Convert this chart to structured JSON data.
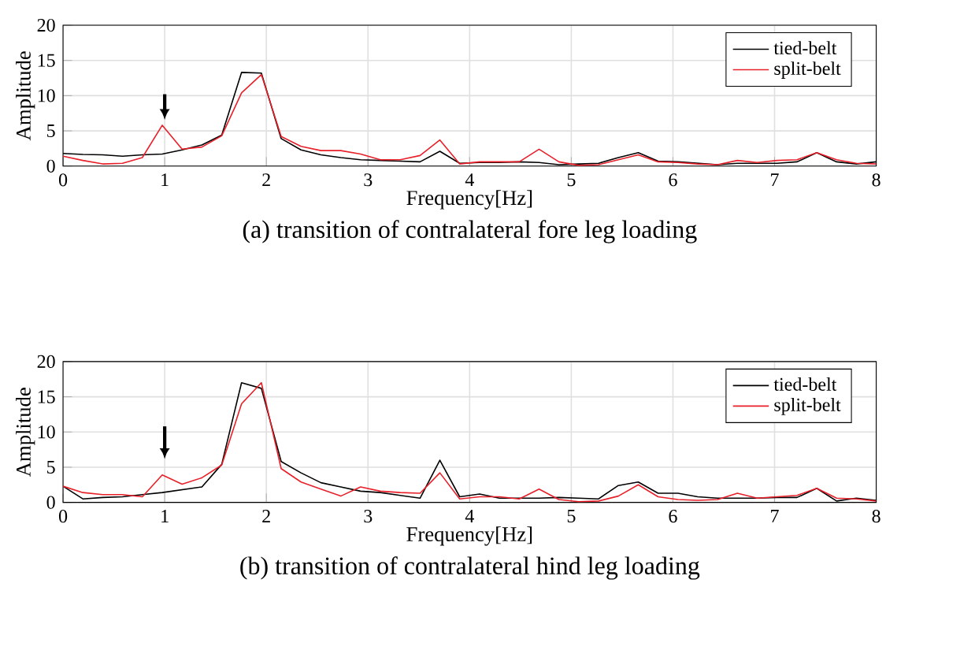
{
  "chart_data": [
    {
      "type": "line",
      "title": "(a) transition of contralateral fore leg loading",
      "xlabel": "Frequency[Hz]",
      "ylabel": "Amplitude",
      "x": [
        0,
        0.195,
        0.39,
        0.585,
        0.78,
        0.976,
        1.171,
        1.366,
        1.561,
        1.756,
        1.951,
        2.146,
        2.341,
        2.537,
        2.732,
        2.927,
        3.122,
        3.317,
        3.512,
        3.707,
        3.902,
        4.098,
        4.293,
        4.488,
        4.683,
        4.878,
        5.073,
        5.268,
        5.463,
        5.659,
        5.854,
        6.049,
        6.244,
        6.439,
        6.634,
        6.829,
        7.024,
        7.22,
        7.415,
        7.61,
        7.805,
        8
      ],
      "series": [
        {
          "name": "tied-belt",
          "color": "#000000",
          "values": [
            1.8,
            1.65,
            1.6,
            1.4,
            1.6,
            1.7,
            2.3,
            3.0,
            4.4,
            13.3,
            13.2,
            3.9,
            2.3,
            1.6,
            1.2,
            0.9,
            0.8,
            0.7,
            0.6,
            2.1,
            0.4,
            0.5,
            0.5,
            0.6,
            0.5,
            0.2,
            0.3,
            0.4,
            1.2,
            1.9,
            0.7,
            0.6,
            0.4,
            0.2,
            0.4,
            0.4,
            0.4,
            0.6,
            1.9,
            0.6,
            0.3,
            0.6
          ]
        },
        {
          "name": "split-belt",
          "color": "#e8202a",
          "values": [
            1.4,
            0.8,
            0.3,
            0.4,
            1.2,
            5.8,
            2.4,
            2.7,
            4.3,
            10.4,
            13.0,
            4.2,
            2.8,
            2.2,
            2.2,
            1.7,
            0.9,
            0.9,
            1.5,
            3.7,
            0.3,
            0.6,
            0.6,
            0.6,
            2.4,
            0.6,
            0.1,
            0.2,
            0.9,
            1.6,
            0.6,
            0.5,
            0.3,
            0.2,
            0.8,
            0.5,
            0.8,
            0.9,
            1.9,
            0.9,
            0.4,
            0.3
          ]
        }
      ],
      "xlim": [
        0,
        8
      ],
      "xticks": [
        0,
        1,
        2,
        3,
        4,
        5,
        6,
        7,
        8
      ],
      "ylim": [
        0,
        20
      ],
      "yticks": [
        0,
        5,
        10,
        15,
        20
      ],
      "grid": true,
      "legend": "top right",
      "line_style": "solid",
      "marker": "none"
    },
    {
      "type": "line",
      "title": "(b) transition of contralateral hind leg loading",
      "xlabel": "Frequency[Hz]",
      "ylabel": "Amplitude",
      "x": [
        0,
        0.195,
        0.39,
        0.585,
        0.78,
        0.976,
        1.171,
        1.366,
        1.561,
        1.756,
        1.951,
        2.146,
        2.341,
        2.537,
        2.732,
        2.927,
        3.122,
        3.317,
        3.512,
        3.707,
        3.902,
        4.098,
        4.293,
        4.488,
        4.683,
        4.878,
        5.073,
        5.268,
        5.463,
        5.659,
        5.854,
        6.049,
        6.244,
        6.439,
        6.634,
        6.829,
        7.024,
        7.22,
        7.415,
        7.61,
        7.805,
        8
      ],
      "series": [
        {
          "name": "tied-belt",
          "color": "#000000",
          "values": [
            2.3,
            0.5,
            0.7,
            0.8,
            1.1,
            1.4,
            1.8,
            2.2,
            5.4,
            17.0,
            16.2,
            5.8,
            4.2,
            2.8,
            2.2,
            1.6,
            1.4,
            1.0,
            0.6,
            6.0,
            0.8,
            1.2,
            0.6,
            0.6,
            0.6,
            0.7,
            0.6,
            0.5,
            2.4,
            2.9,
            1.3,
            1.3,
            0.8,
            0.6,
            0.6,
            0.6,
            0.7,
            0.7,
            2.0,
            0.2,
            0.6,
            0.3
          ]
        },
        {
          "name": "split-belt",
          "color": "#e8202a",
          "values": [
            2.3,
            1.4,
            1.1,
            1.1,
            0.8,
            3.9,
            2.6,
            3.5,
            5.3,
            14.0,
            17.0,
            4.8,
            2.9,
            1.9,
            0.9,
            2.2,
            1.6,
            1.4,
            1.3,
            4.2,
            0.5,
            0.8,
            0.8,
            0.5,
            1.9,
            0.4,
            0.1,
            0.2,
            0.9,
            2.5,
            0.8,
            0.4,
            0.3,
            0.4,
            1.3,
            0.6,
            0.8,
            1.0,
            2.0,
            0.6,
            0.5,
            0.2
          ]
        }
      ],
      "xlim": [
        0,
        8
      ],
      "xticks": [
        0,
        1,
        2,
        3,
        4,
        5,
        6,
        7,
        8
      ],
      "ylim": [
        0,
        20
      ],
      "yticks": [
        0,
        5,
        10,
        15,
        20
      ],
      "grid": true,
      "legend": "top right",
      "line_style": "solid",
      "marker": "none"
    }
  ]
}
